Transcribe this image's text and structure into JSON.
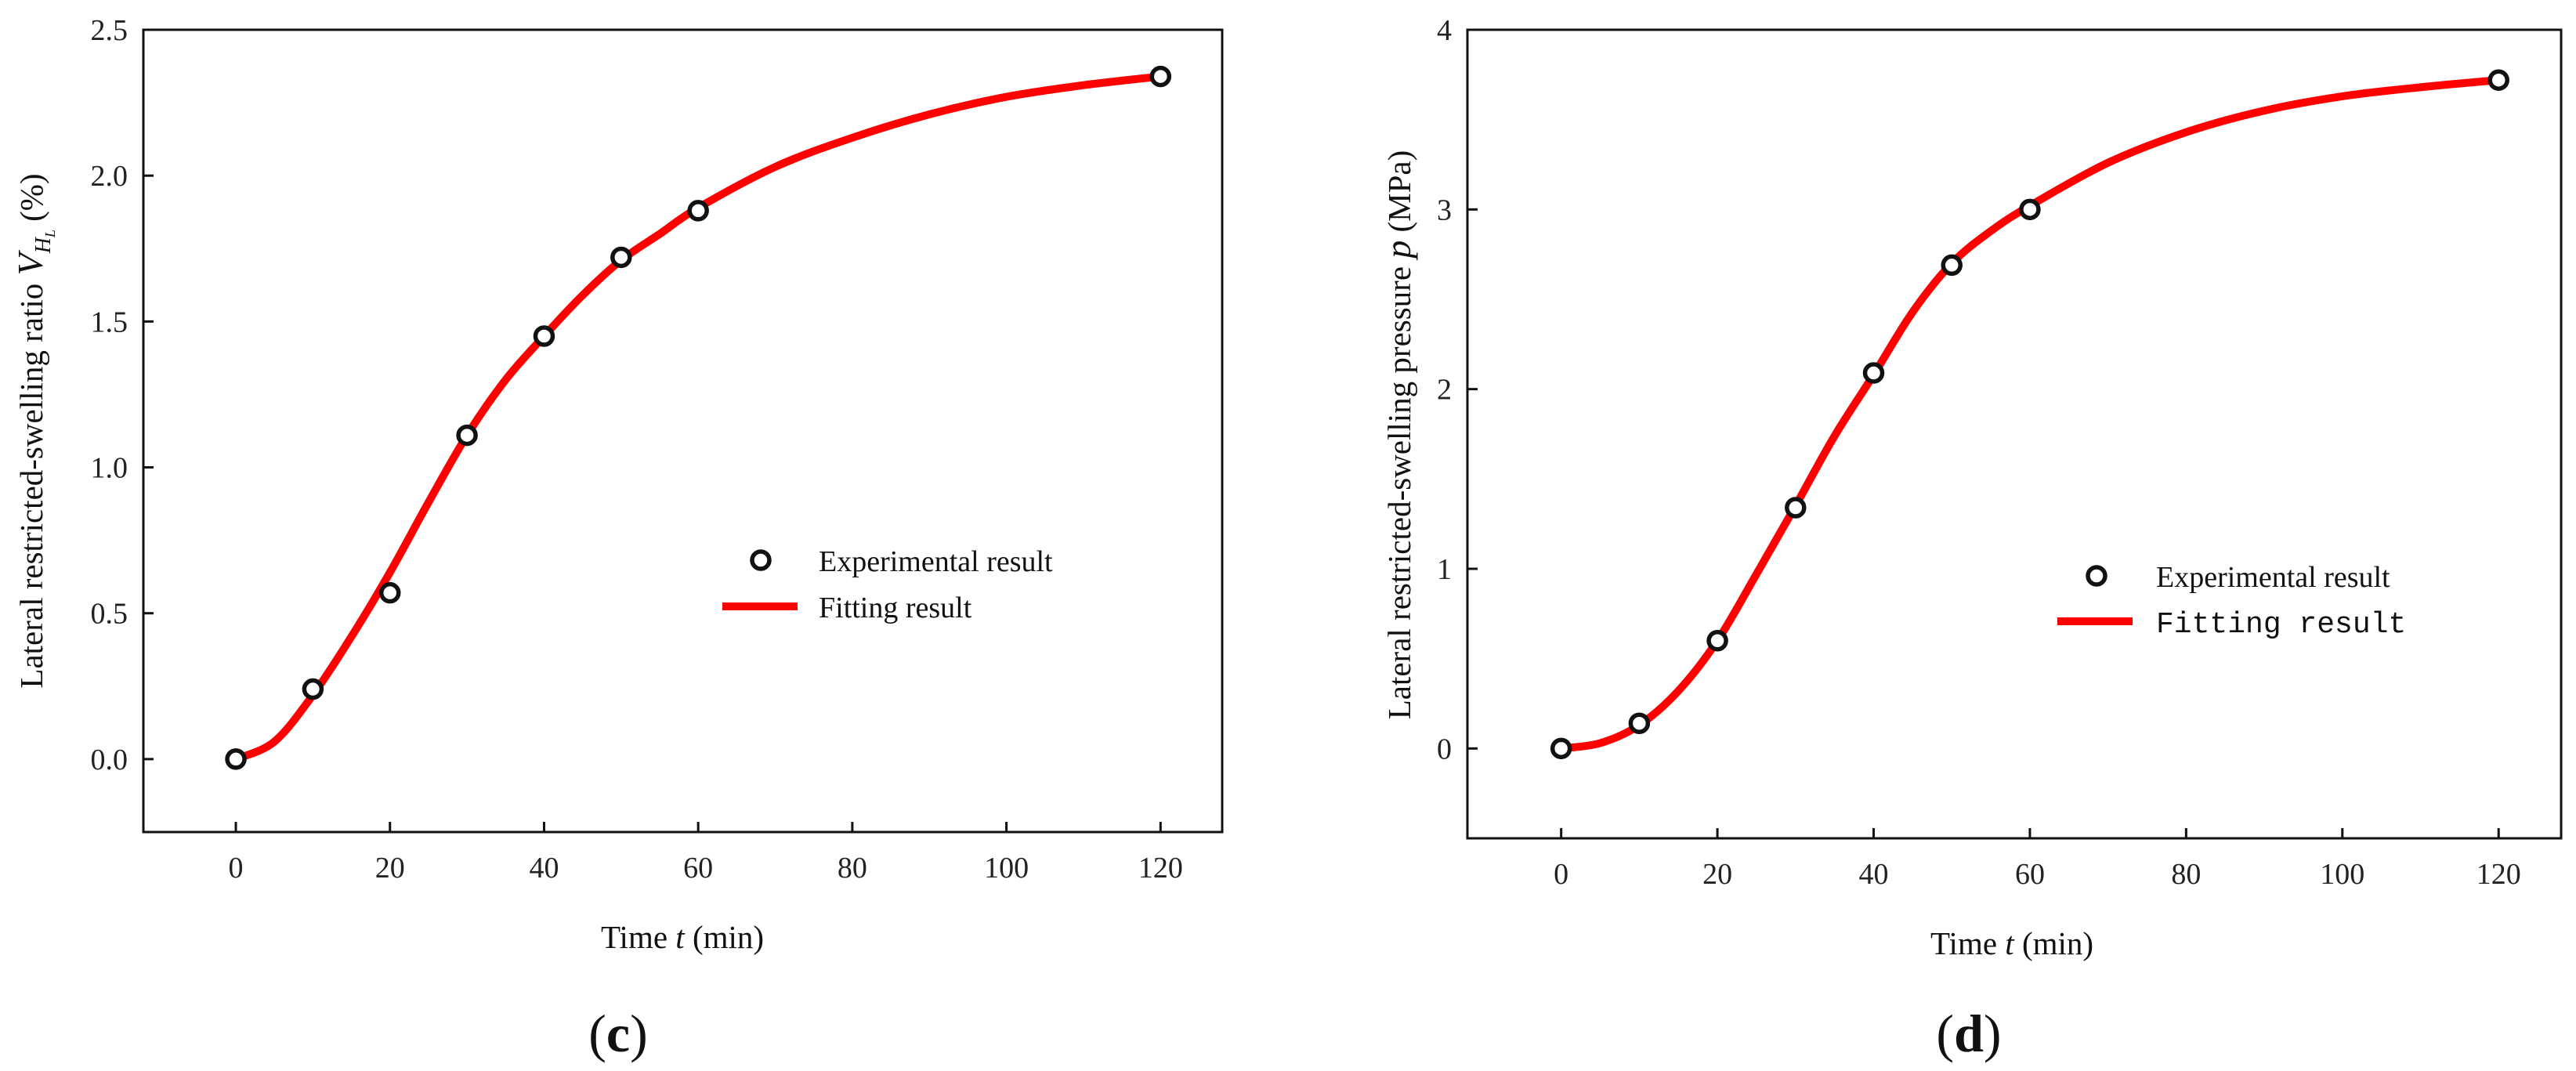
{
  "chart_data": [
    {
      "type": "scatter",
      "panel_label": "c",
      "xlabel": {
        "prefix": "Time ",
        "var": "t",
        "suffix": " (min)"
      },
      "ylabel": {
        "prefix": "Lateral restricted-swelling ratio  ",
        "var": "V",
        "sub": "H",
        "subsub": "L",
        "suffix": " (%)"
      },
      "xlim": [
        -12,
        128
      ],
      "ylim": [
        -0.25,
        2.5
      ],
      "xticks": [
        0,
        20,
        40,
        60,
        80,
        100,
        120
      ],
      "yticks": [
        "0.0",
        "0.5",
        "1.0",
        "1.5",
        "2.0",
        "2.5"
      ],
      "series": [
        {
          "name": "Experimental result",
          "kind": "markers",
          "x": [
            0,
            10,
            20,
            30,
            40,
            50,
            60,
            120
          ],
          "y": [
            0.0,
            0.24,
            0.57,
            1.11,
            1.45,
            1.72,
            1.88,
            2.34
          ]
        },
        {
          "name": "Fitting result",
          "kind": "line",
          "color": "#ff0000",
          "x": [
            0,
            5,
            10,
            15,
            20,
            25,
            30,
            35,
            40,
            45,
            50,
            55,
            60,
            70,
            80,
            90,
            100,
            110,
            120
          ],
          "y": [
            0.0,
            0.06,
            0.22,
            0.42,
            0.64,
            0.88,
            1.11,
            1.3,
            1.45,
            1.59,
            1.71,
            1.8,
            1.89,
            2.03,
            2.13,
            2.21,
            2.27,
            2.31,
            2.34
          ]
        }
      ],
      "legend_labels": [
        "Experimental result",
        "Fitting result"
      ]
    },
    {
      "type": "scatter",
      "panel_label": "d",
      "xlabel": {
        "prefix": "Time ",
        "var": "t",
        "suffix": " (min)"
      },
      "ylabel": {
        "prefix": "Lateral restricted-swelling pressure  ",
        "var": "p",
        "suffix": " (MPa)"
      },
      "xlim": [
        -12,
        128
      ],
      "ylim": [
        -0.5,
        4
      ],
      "xticks": [
        0,
        20,
        40,
        60,
        80,
        100,
        120
      ],
      "yticks": [
        "0",
        "1",
        "2",
        "3",
        "4"
      ],
      "series": [
        {
          "name": "Experimental result",
          "kind": "markers",
          "x": [
            0,
            10,
            20,
            30,
            40,
            50,
            60,
            120
          ],
          "y": [
            0.0,
            0.14,
            0.6,
            1.34,
            2.09,
            2.69,
            3.0,
            3.72
          ]
        },
        {
          "name": "Fitting result",
          "kind": "line",
          "color": "#ff0000",
          "x": [
            0,
            5,
            10,
            15,
            20,
            25,
            30,
            35,
            40,
            45,
            50,
            55,
            60,
            70,
            80,
            90,
            100,
            110,
            120
          ],
          "y": [
            0.0,
            0.03,
            0.13,
            0.32,
            0.6,
            0.97,
            1.35,
            1.74,
            2.08,
            2.43,
            2.7,
            2.88,
            3.02,
            3.26,
            3.43,
            3.55,
            3.63,
            3.68,
            3.72
          ]
        }
      ],
      "legend_labels": [
        "Experimental result",
        "Fitting result"
      ]
    }
  ]
}
